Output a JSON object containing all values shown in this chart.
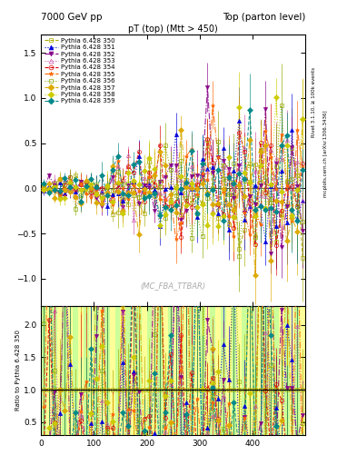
{
  "title_left": "7000 GeV pp",
  "title_right": "Top (parton level)",
  "plot_title": "pT (top) (Mtt > 450)",
  "watermark": "(MC_FBA_TTBAR)",
  "ylabel_ratio": "Ratio to Pythia 6.428 350",
  "right_label": "Rivet 3.1.10, ≥ 100k events",
  "right_label2": "mcplots.cern.ch [arXiv:1306.3436]",
  "xlim": [
    0,
    500
  ],
  "ylim_main": [
    -1.3,
    1.7
  ],
  "ylim_ratio": [
    0.3,
    2.3
  ],
  "series": [
    {
      "label": "Pythia 6.428 350",
      "color": "#aaaa00",
      "marker": "s",
      "ls": "--",
      "filled": false
    },
    {
      "label": "Pythia 6.428 351",
      "color": "#0000dd",
      "marker": "^",
      "ls": ":",
      "filled": true
    },
    {
      "label": "Pythia 6.428 352",
      "color": "#880088",
      "marker": "v",
      "ls": "-.",
      "filled": true
    },
    {
      "label": "Pythia 6.428 353",
      "color": "#cc55aa",
      "marker": "^",
      "ls": ":",
      "filled": false
    },
    {
      "label": "Pythia 6.428 354",
      "color": "#dd0000",
      "marker": "o",
      "ls": "--",
      "filled": false
    },
    {
      "label": "Pythia 6.428 355",
      "color": "#ff6600",
      "marker": "*",
      "ls": "-.",
      "filled": true
    },
    {
      "label": "Pythia 6.428 356",
      "color": "#88aa00",
      "marker": "s",
      "ls": ":",
      "filled": false
    },
    {
      "label": "Pythia 6.428 357",
      "color": "#ddaa00",
      "marker": "D",
      "ls": "-.",
      "filled": true
    },
    {
      "label": "Pythia 6.428 358",
      "color": "#cccc00",
      "marker": "D",
      "ls": ":",
      "filled": true
    },
    {
      "label": "Pythia 6.428 359",
      "color": "#008888",
      "marker": "D",
      "ls": "--",
      "filled": true
    }
  ],
  "n_bins": 50,
  "x_min": 0,
  "x_max": 500,
  "bg_color_even": "#ccff99",
  "bg_color_odd": "#ffff99"
}
